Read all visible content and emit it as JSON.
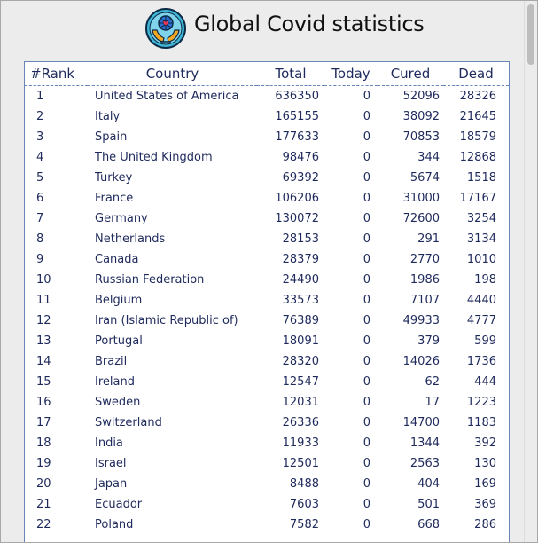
{
  "header": {
    "title": "Global Covid statistics",
    "logo_icon": "globe-hands-icon",
    "colors": {
      "logo_ring": "#1fa3c7",
      "logo_hand": "#f5a623",
      "logo_heart": "#e8365d"
    }
  },
  "table": {
    "columns": [
      "#Rank",
      "Country",
      "Total",
      "Today",
      "Cured",
      "Dead"
    ],
    "rows": [
      {
        "rank": "1",
        "country": "United States of America",
        "total": "636350",
        "today": "0",
        "cured": "52096",
        "dead": "28326"
      },
      {
        "rank": "2",
        "country": "Italy",
        "total": "165155",
        "today": "0",
        "cured": "38092",
        "dead": "21645"
      },
      {
        "rank": "3",
        "country": "Spain",
        "total": "177633",
        "today": "0",
        "cured": "70853",
        "dead": "18579"
      },
      {
        "rank": "4",
        "country": "The United Kingdom",
        "total": "98476",
        "today": "0",
        "cured": "344",
        "dead": "12868"
      },
      {
        "rank": "5",
        "country": "Turkey",
        "total": "69392",
        "today": "0",
        "cured": "5674",
        "dead": "1518"
      },
      {
        "rank": "6",
        "country": "France",
        "total": "106206",
        "today": "0",
        "cured": "31000",
        "dead": "17167"
      },
      {
        "rank": "7",
        "country": "Germany",
        "total": "130072",
        "today": "0",
        "cured": "72600",
        "dead": "3254"
      },
      {
        "rank": "8",
        "country": "Netherlands",
        "total": "28153",
        "today": "0",
        "cured": "291",
        "dead": "3134"
      },
      {
        "rank": "9",
        "country": "Canada",
        "total": "28379",
        "today": "0",
        "cured": "2770",
        "dead": "1010"
      },
      {
        "rank": "10",
        "country": "Russian Federation",
        "total": "24490",
        "today": "0",
        "cured": "1986",
        "dead": "198"
      },
      {
        "rank": "11",
        "country": "Belgium",
        "total": "33573",
        "today": "0",
        "cured": "7107",
        "dead": "4440"
      },
      {
        "rank": "12",
        "country": "Iran (Islamic Republic of)",
        "total": "76389",
        "today": "0",
        "cured": "49933",
        "dead": "4777"
      },
      {
        "rank": "13",
        "country": "Portugal",
        "total": "18091",
        "today": "0",
        "cured": "379",
        "dead": "599"
      },
      {
        "rank": "14",
        "country": "Brazil",
        "total": "28320",
        "today": "0",
        "cured": "14026",
        "dead": "1736"
      },
      {
        "rank": "15",
        "country": "Ireland",
        "total": "12547",
        "today": "0",
        "cured": "62",
        "dead": "444"
      },
      {
        "rank": "16",
        "country": "Sweden",
        "total": "12031",
        "today": "0",
        "cured": "17",
        "dead": "1223"
      },
      {
        "rank": "17",
        "country": "Switzerland",
        "total": "26336",
        "today": "0",
        "cured": "14700",
        "dead": "1183"
      },
      {
        "rank": "18",
        "country": "India",
        "total": "11933",
        "today": "0",
        "cured": "1344",
        "dead": "392"
      },
      {
        "rank": "19",
        "country": "Israel",
        "total": "12501",
        "today": "0",
        "cured": "2563",
        "dead": "130"
      },
      {
        "rank": "20",
        "country": "Japan",
        "total": "8488",
        "today": "0",
        "cured": "404",
        "dead": "169"
      },
      {
        "rank": "21",
        "country": "Ecuador",
        "total": "7603",
        "today": "0",
        "cured": "501",
        "dead": "369"
      },
      {
        "rank": "22",
        "country": "Poland",
        "total": "7582",
        "today": "0",
        "cured": "668",
        "dead": "286"
      }
    ]
  }
}
